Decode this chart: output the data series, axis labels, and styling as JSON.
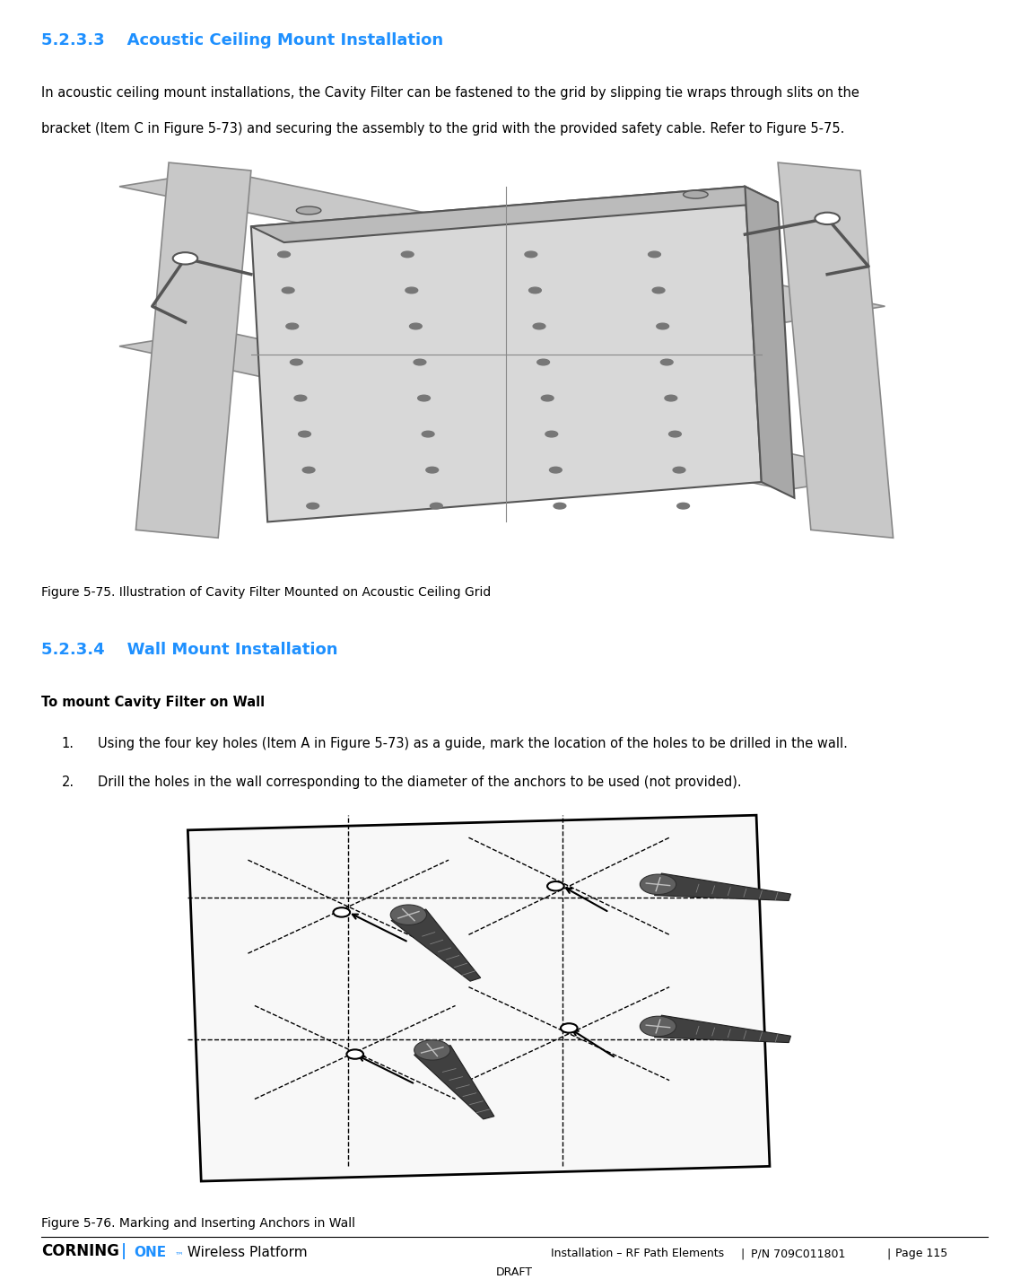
{
  "page_width": 11.47,
  "page_height": 14.35,
  "bg_color": "#ffffff",
  "heading1_text": "5.2.3.3",
  "heading1_label": "Acoustic Ceiling Mount Installation",
  "heading1_color": "#1E90FF",
  "heading1_fontsize": 13,
  "para1_line1": "In acoustic ceiling mount installations, the Cavity Filter can be fastened to the grid by slipping tie wraps through slits on the",
  "para1_line2": "bracket (Item C in Figure 5-73) and securing the assembly to the grid with the provided safety cable. Refer to Figure 5-75.",
  "para1_fontsize": 10.5,
  "fig1_caption": "Figure 5-75. Illustration of Cavity Filter Mounted on Acoustic Ceiling Grid",
  "fig1_caption_fontsize": 10,
  "heading2_text": "5.2.3.4",
  "heading2_label": "Wall Mount Installation",
  "heading2_color": "#1E90FF",
  "heading2_fontsize": 13,
  "subheading": "To mount Cavity Filter on Wall",
  "subheading_fontsize": 10.5,
  "list_item1": "Using the four key holes (Item A in Figure 5-73) as a guide, mark the location of the holes to be drilled in the wall.",
  "list_item2": "Drill the holes in the wall corresponding to the diameter of the anchors to be used (not provided).",
  "list_fontsize": 10.5,
  "fig2_caption": "Figure 5-76. Marking and Inserting Anchors in Wall",
  "fig2_caption_fontsize": 10,
  "footer_left": "CORNING",
  "footer_pipe": "|",
  "footer_one": "ONE",
  "footer_tm": "™",
  "footer_platform": " Wireless Platform",
  "footer_center": "Installation – RF Path Elements",
  "footer_pn": "P/N 709C011801",
  "footer_page": "Page 115",
  "footer_draft": "DRAFT",
  "footer_fontsize": 9,
  "blue_color": "#1E90FF",
  "black_color": "#000000",
  "corning_fontsize": 12
}
